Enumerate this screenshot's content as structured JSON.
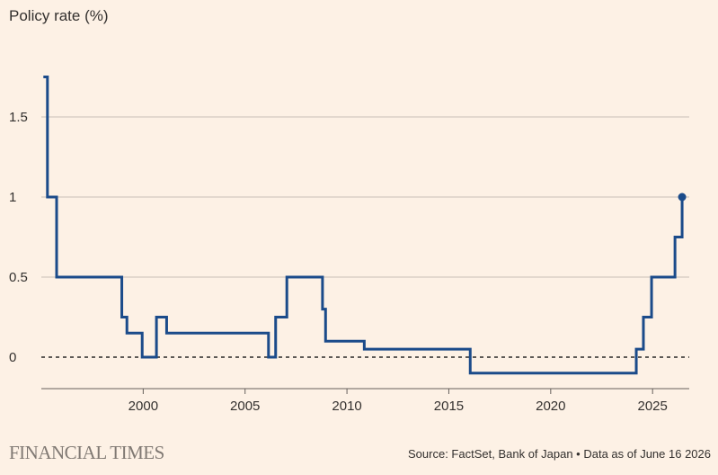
{
  "brand": "FINANCIAL TIMES",
  "source_text": "Source: FactSet, Bank of Japan • Data as of June 16 2026",
  "colors": {
    "background": "#fdf1e5",
    "line": "#1b4b8a",
    "grid": "#c9c0b8",
    "text": "#33302e"
  },
  "chart_data": {
    "type": "line",
    "ylabel": "Policy rate (%)",
    "xlim": [
      1995.0,
      2026.8
    ],
    "ylim": [
      -0.2,
      1.85
    ],
    "y_ticks": [
      0,
      0.5,
      1,
      1.5
    ],
    "y_tick_labels": [
      "0",
      "0.5",
      "1",
      "1.5"
    ],
    "x_ticks": [
      2000,
      2005,
      2010,
      2015,
      2020,
      2025
    ],
    "x_tick_labels": [
      "2000",
      "2005",
      "2010",
      "2015",
      "2020",
      "2025"
    ],
    "zero_line": "dashed",
    "end_marker": true,
    "series": [
      {
        "step": true,
        "x": [
          1995.1,
          1995.3,
          1995.6,
          1995.75,
          1998.7,
          1998.95,
          1999.2,
          1999.95,
          2000.65,
          2001.15,
          2006.15,
          2006.5,
          2007.05,
          2007.55,
          2008.8,
          2008.95,
          2010.85,
          2016.05,
          2024.2,
          2024.55,
          2024.95,
          2025.6,
          2026.1,
          2026.45
        ],
        "y": [
          1.75,
          1.0,
          1.0,
          0.5,
          0.5,
          0.25,
          0.15,
          0.0,
          0.25,
          0.15,
          0.0,
          0.25,
          0.5,
          0.5,
          0.3,
          0.1,
          0.05,
          -0.1,
          0.05,
          0.25,
          0.5,
          0.5,
          0.75,
          1.0
        ]
      }
    ]
  }
}
